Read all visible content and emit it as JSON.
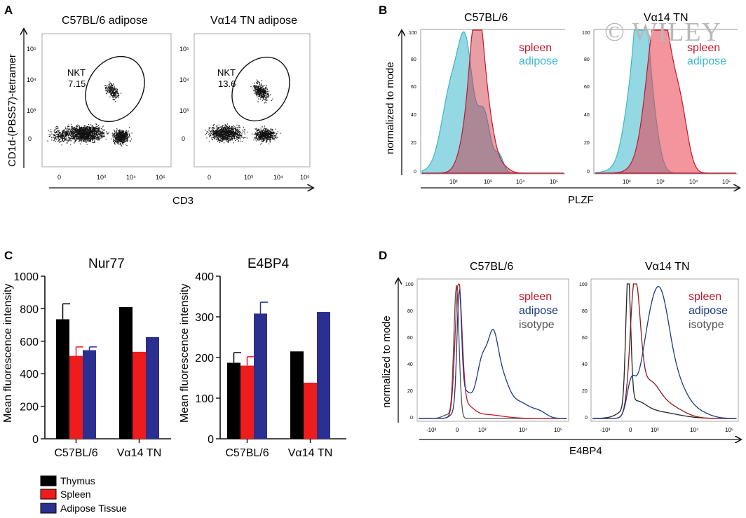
{
  "watermark": "© WILEY",
  "legend_bottom": [
    "Thymus",
    "Spleen",
    "Adipose Tissue"
  ],
  "colors": {
    "thymus": "#000000",
    "spleen": "#ee1c1c",
    "adipose_tissue": "#2b2f8f",
    "hist_spleen": "#c0182c",
    "hist_adipose_c": "#3ab8cc",
    "hist_adipose_d": "#1c3a86",
    "hist_isotype": "#555555"
  },
  "panels": {
    "A": {
      "letter": "A",
      "titles": [
        "C57BL/6 adipose",
        "Vα14 TN adipose"
      ],
      "ylabel": "CD1d-(PBS57)-tetramer",
      "xlabel": "CD3",
      "gate_label": "NKT",
      "gate_values": [
        "7.15",
        "13.6"
      ]
    },
    "B": {
      "letter": "B",
      "titles": [
        "C57BL/6",
        "Vα14 TN"
      ],
      "ylabel": "normalized to mode",
      "xlabel": "PLZF",
      "legend": [
        "spleen",
        "adipose"
      ]
    },
    "C": {
      "letter": "C"
    },
    "D": {
      "letter": "D",
      "titles": [
        "C57BL/6",
        "Vα14 TN"
      ],
      "ylabel": "normalized to mode",
      "xlabel": "E4BP4",
      "legend": [
        "spleen",
        "adipose",
        "isotype"
      ]
    }
  },
  "chart_data": [
    {
      "type": "bar",
      "title": "Nur77",
      "ylabel": "Mean fluorescence intensity",
      "ylim": [
        0,
        1000
      ],
      "yticks": [
        "0",
        "200",
        "400",
        "600",
        "800",
        "1000"
      ],
      "categories": [
        "C57BL/6",
        "Vα14 TN"
      ],
      "series": [
        {
          "name": "Thymus",
          "values": [
            735,
            810
          ],
          "errors": [
            95,
            0
          ]
        },
        {
          "name": "Spleen",
          "values": [
            510,
            535
          ],
          "errors": [
            55,
            0
          ]
        },
        {
          "name": "Adipose Tissue",
          "values": [
            545,
            625
          ],
          "errors": [
            20,
            0
          ]
        }
      ]
    },
    {
      "type": "bar",
      "title": "E4BP4",
      "ylabel": "Mean fluorescence intensity",
      "ylim": [
        0,
        400
      ],
      "yticks": [
        "0",
        "100",
        "200",
        "300",
        "400"
      ],
      "categories": [
        "C57BL/6",
        "Vα14 TN"
      ],
      "series": [
        {
          "name": "Thymus",
          "values": [
            187,
            215
          ],
          "errors": [
            25,
            0
          ]
        },
        {
          "name": "Spleen",
          "values": [
            180,
            138
          ],
          "errors": [
            22,
            0
          ]
        },
        {
          "name": "Adipose Tissue",
          "values": [
            308,
            312
          ],
          "errors": [
            28,
            0
          ]
        }
      ]
    }
  ],
  "hist_axis": {
    "y_ticks": [
      "0",
      "20",
      "40",
      "60",
      "80",
      "100"
    ],
    "x_ticks_B": [
      "10²",
      "10³",
      "10⁴",
      "10⁵"
    ],
    "x_ticks_D": [
      "-10³",
      "0",
      "10³",
      "10⁴",
      "10⁵"
    ]
  },
  "flow_axis": {
    "y_ticks": [
      "0",
      "10³",
      "10⁴",
      "10⁵"
    ],
    "x_ticks": [
      "0",
      "10³",
      "10⁴",
      "10⁵"
    ]
  }
}
